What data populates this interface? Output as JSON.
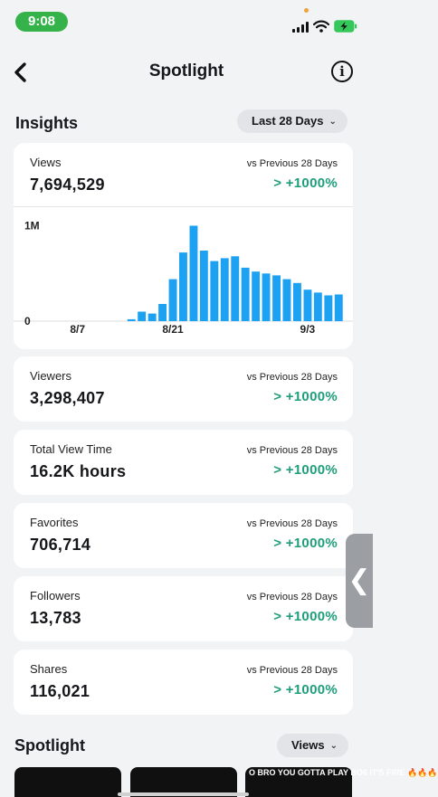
{
  "status": {
    "time": "9:08"
  },
  "nav": {
    "title": "Spotlight",
    "back_icon": "chevron-left-icon",
    "info_icon": "info-icon"
  },
  "insights": {
    "heading": "Insights",
    "range": "Last 28 Days"
  },
  "metrics": [
    {
      "label": "Views",
      "value": "7,694,529",
      "vs": "vs Previous 28 Days",
      "delta": "> +1000%"
    },
    {
      "label": "Viewers",
      "value": "3,298,407",
      "vs": "vs Previous 28 Days",
      "delta": "> +1000%"
    },
    {
      "label": "Total View Time",
      "value": "16.2K hours",
      "vs": "vs Previous 28 Days",
      "delta": "> +1000%"
    },
    {
      "label": "Favorites",
      "value": "706,714",
      "vs": "vs Previous 28 Days",
      "delta": "> +1000%"
    },
    {
      "label": "Followers",
      "value": "13,783",
      "vs": "vs Previous 28 Days",
      "delta": "> +1000%"
    },
    {
      "label": "Shares",
      "value": "116,021",
      "vs": "vs Previous 28 Days",
      "delta": "> +1000%"
    }
  ],
  "chart_data": {
    "type": "bar",
    "y_tick_labels": [
      "1M",
      "0"
    ],
    "x_tick_labels": [
      "8/7",
      "8/21",
      "9/3"
    ],
    "ylim": [
      0,
      1100000
    ],
    "values": [
      0,
      0,
      0,
      0,
      0,
      0,
      0,
      0,
      0,
      0,
      20000,
      100000,
      80000,
      180000,
      440000,
      720000,
      1000000,
      740000,
      630000,
      660000,
      680000,
      560000,
      520000,
      500000,
      480000,
      440000,
      400000,
      330000,
      300000,
      270000,
      280000
    ],
    "bar_color": "#1da1f2"
  },
  "spotlight": {
    "heading": "Spotlight",
    "sort": "Views"
  },
  "thumbs": [
    {
      "text": ""
    },
    {
      "text": ""
    },
    {
      "text": "O BRO YOU GOTTA PLAY BO6 IT'S FIRE 🔥🔥🔥"
    }
  ],
  "colors": {
    "accent_green": "#1f9e7a",
    "status_green": "#35b34a",
    "bar": "#1da1f2"
  }
}
